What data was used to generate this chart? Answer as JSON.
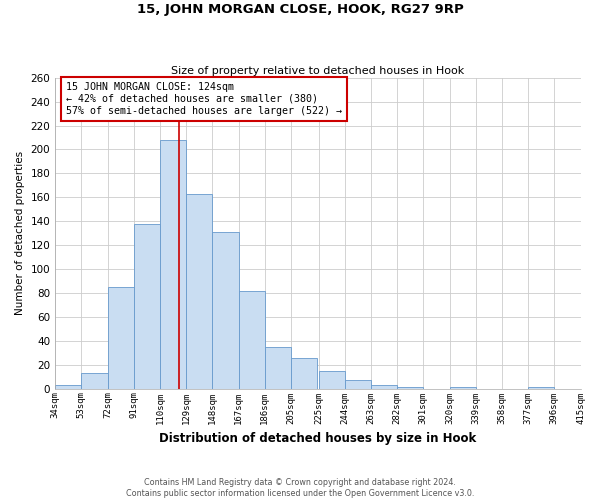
{
  "title": "15, JOHN MORGAN CLOSE, HOOK, RG27 9RP",
  "subtitle": "Size of property relative to detached houses in Hook",
  "xlabel": "Distribution of detached houses by size in Hook",
  "ylabel": "Number of detached properties",
  "bin_edges": [
    34,
    53,
    72,
    91,
    110,
    129,
    148,
    167,
    186,
    205,
    225,
    244,
    263,
    282,
    301,
    320,
    339,
    358,
    377,
    396,
    415
  ],
  "bin_labels": [
    "34sqm",
    "53sqm",
    "72sqm",
    "91sqm",
    "110sqm",
    "129sqm",
    "148sqm",
    "167sqm",
    "186sqm",
    "205sqm",
    "225sqm",
    "244sqm",
    "263sqm",
    "282sqm",
    "301sqm",
    "320sqm",
    "339sqm",
    "358sqm",
    "377sqm",
    "396sqm",
    "415sqm"
  ],
  "counts": [
    3,
    13,
    85,
    138,
    208,
    163,
    131,
    82,
    35,
    26,
    15,
    7,
    3,
    1,
    0,
    1,
    0,
    0,
    1,
    0
  ],
  "bar_color": "#c9ddf2",
  "bar_edge_color": "#6699cc",
  "property_value": 124,
  "vline_color": "#cc0000",
  "annotation_title": "15 JOHN MORGAN CLOSE: 124sqm",
  "annotation_line1": "← 42% of detached houses are smaller (380)",
  "annotation_line2": "57% of semi-detached houses are larger (522) →",
  "annotation_box_facecolor": "#ffffff",
  "annotation_box_edgecolor": "#cc0000",
  "ylim": [
    0,
    260
  ],
  "yticks": [
    0,
    20,
    40,
    60,
    80,
    100,
    120,
    140,
    160,
    180,
    200,
    220,
    240,
    260
  ],
  "footnote1": "Contains HM Land Registry data © Crown copyright and database right 2024.",
  "footnote2": "Contains public sector information licensed under the Open Government Licence v3.0.",
  "bg_color": "#ffffff",
  "grid_color": "#cccccc"
}
